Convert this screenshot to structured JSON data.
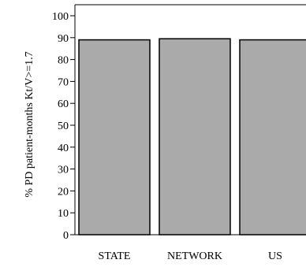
{
  "chart_data": {
    "type": "bar",
    "categories": [
      "STATE",
      "NETWORK",
      "US"
    ],
    "values": [
      89,
      89.5,
      89
    ],
    "title": "",
    "xlabel": "",
    "ylabel": "% PD patient-months Kt/V>=1.7",
    "ylim": [
      0,
      100
    ],
    "yticks": [
      0,
      10,
      20,
      30,
      40,
      50,
      60,
      70,
      80,
      90,
      100
    ],
    "grid": false,
    "legend": "none",
    "colors": {
      "bar_fill": "#aaaaaa",
      "bar_stroke": "#000000",
      "axis": "#000000"
    }
  }
}
